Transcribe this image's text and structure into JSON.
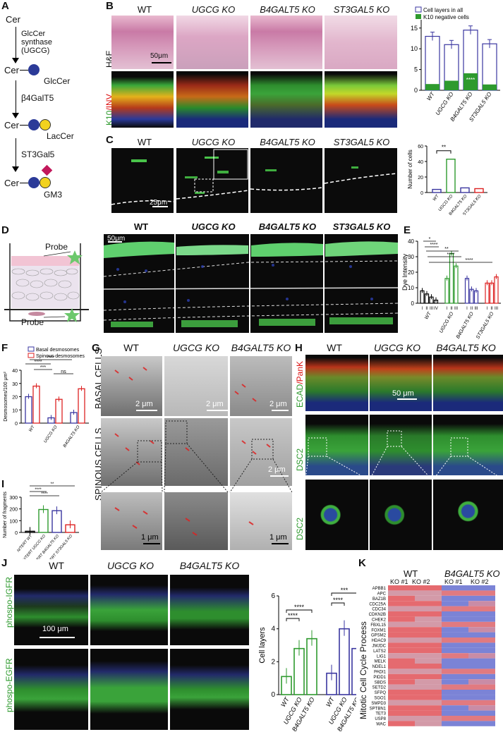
{
  "panels": {
    "A": {
      "label": "A",
      "cer1": "Cer",
      "enzyme1": "GlcCer synthase (UGCG)",
      "cer2": "Cer",
      "glccer": "GlcCer",
      "enzyme2": "β4GalT5",
      "cer3": "Cer",
      "laccer": "LacCer",
      "enzyme3": "ST3Gal5",
      "cer4": "Cer",
      "gm3": "GM3"
    },
    "B": {
      "label": "B",
      "cols": [
        "WT",
        "UGCG KO",
        "B4GALT5 KO",
        "ST3GAL5 KO"
      ],
      "row1": "H&E",
      "row2_k10": "K10",
      "row2_inv": "/INV",
      "scale": "50μm"
    },
    "C": {
      "label": "C",
      "cols": [
        "WT",
        "UGCG KO",
        "B4GALT5 KO",
        "ST3GAL5 KO"
      ],
      "scale": "25μm"
    },
    "D": {
      "label": "D",
      "cols": [
        "WT",
        "UGCG KO",
        "B4GALT5 KO",
        "ST3GAL5 KO"
      ],
      "probe_top": "Probe",
      "probe_bottom": "Probe",
      "scale": "50μm"
    },
    "E": {
      "label": "E"
    },
    "F": {
      "label": "F"
    },
    "G": {
      "label": "G",
      "cols": [
        "WT",
        "UGCG KO",
        "B4GALT5 KO"
      ],
      "row1": "BASAL CELLS",
      "row2": "SPINOUS CELLS",
      "s1": "2 μm",
      "s2": "2 μm",
      "s3": "2 μm",
      "s4": "2 μm",
      "s5": "1 μm",
      "s6": "1 μm"
    },
    "H": {
      "label": "H",
      "cols": [
        "WT",
        "UGCG KO",
        "B4GALT5 KO"
      ],
      "row1a": "ECAD",
      "row1b": "/PanK",
      "row2": "DSC2",
      "row3": "DSC2",
      "scale": "50 μm"
    },
    "I": {
      "label": "I"
    },
    "J": {
      "label": "J",
      "cols": [
        "WT",
        "UGCG KO",
        "B4GALT5 KO"
      ],
      "row1": "phospo-IGFR",
      "row2": "phospo-EGFR",
      "scale": "100 μm"
    },
    "K": {
      "label": "K",
      "grp1": "WT",
      "grp2": "B4GALT5 KO",
      "sub": [
        "KO #1",
        "KO #2",
        "KO #1",
        "KO #2"
      ],
      "ylabel": "Mitotic Cell Cycle Process"
    }
  },
  "chart_data": [
    {
      "id": "B",
      "type": "bar",
      "categories": [
        "WT",
        "UGCG KO",
        "B4GALT5 KO",
        "ST3GAL5 KO"
      ],
      "series": [
        {
          "name": "Cell layers in all",
          "values": [
            13,
            11,
            14.5,
            11.2
          ]
        },
        {
          "name": "K10 negative cells",
          "values": [
            1.5,
            2.3,
            4.1,
            1.4
          ]
        }
      ],
      "annotations": [
        "****"
      ],
      "ylim": [
        0,
        17
      ],
      "yticks": [
        0,
        5,
        10,
        15
      ]
    },
    {
      "id": "C",
      "type": "bar",
      "categories": [
        "WT",
        "UGCG KO",
        "B4GALT5 KO",
        "ST3GAL5 KO"
      ],
      "values": [
        4,
        43,
        6,
        5
      ],
      "ylabel": "Number of cells",
      "ylim": [
        0,
        60
      ],
      "yticks": [
        0,
        20,
        40,
        60
      ],
      "annotations": [
        "**"
      ]
    },
    {
      "id": "E",
      "type": "bar",
      "ylabel": "Dye Intensity",
      "groups": [
        "WT",
        "UGCG KO",
        "B4GALT5 KO",
        "ST3GAL5 KO"
      ],
      "sub": [
        "I",
        "II",
        "III",
        "IV"
      ],
      "values": [
        [
          8,
          6,
          4,
          2
        ],
        [
          16,
          32,
          24,
          0
        ],
        [
          16,
          9,
          8,
          0
        ],
        [
          13,
          13,
          17,
          0
        ]
      ],
      "ylim": [
        0,
        40
      ],
      "yticks": [
        0,
        10,
        20,
        30,
        40
      ],
      "annotations": [
        "*",
        "****",
        "**",
        "****",
        "****"
      ]
    },
    {
      "id": "F",
      "type": "bar",
      "ylabel": "Desmosomes/100 μm²",
      "categories": [
        "WT",
        "UGCG KO",
        "B4GALT5 KO"
      ],
      "series": [
        {
          "name": "Basal desmosomes",
          "values": [
            20,
            4,
            8
          ]
        },
        {
          "name": "Spinous desmosomes",
          "values": [
            28,
            18,
            26
          ]
        }
      ],
      "ylim": [
        0,
        40
      ],
      "yticks": [
        0,
        10,
        20,
        30,
        40
      ],
      "annotations": [
        "****",
        "***",
        "****",
        "ns"
      ]
    },
    {
      "id": "I",
      "type": "bar",
      "ylabel": "Number of fragments",
      "categories": [
        "N/TERT WT",
        "N/TERT UGCG KO",
        "N/TERT B4GALT5 KO",
        "N/TERT ST3GAL5 KO"
      ],
      "values": [
        10,
        195,
        185,
        65
      ],
      "ylim": [
        0,
        300
      ],
      "yticks": [
        0,
        100,
        200,
        300
      ],
      "annotations": [
        "**",
        "****",
        "****"
      ]
    },
    {
      "id": "J",
      "type": "bar",
      "ylabel": "Cell layers",
      "categories": [
        "WT",
        "UGCG KO",
        "B4GALT5 KO",
        "WT",
        "UGCG KO",
        "B4GALT5 KO"
      ],
      "values": [
        1.1,
        2.8,
        3.4,
        1.3,
        4.0,
        2.8
      ],
      "ylim": [
        0,
        6
      ],
      "yticks": [
        0,
        2,
        4,
        6
      ],
      "annotations": [
        "****",
        "****",
        "***",
        "****"
      ]
    },
    {
      "id": "K",
      "type": "heatmap",
      "rows": [
        "APBB1",
        "APC",
        "BAZ1B",
        "CDC25A",
        "CDC34",
        "CDKN2B",
        "CHEK2",
        "FBXL15",
        "FOXM1",
        "GPSM2",
        "HDAC9",
        "JMJDC",
        "LATS2",
        "LIG1",
        "MELK",
        "NDEL1",
        "PADI1",
        "PIDD1",
        "SBDS",
        "SETD2",
        "SFPQ",
        "SGO1",
        "SMPD3",
        "SPTBN1",
        "TET3",
        "USP8",
        "WAC"
      ]
    }
  ]
}
